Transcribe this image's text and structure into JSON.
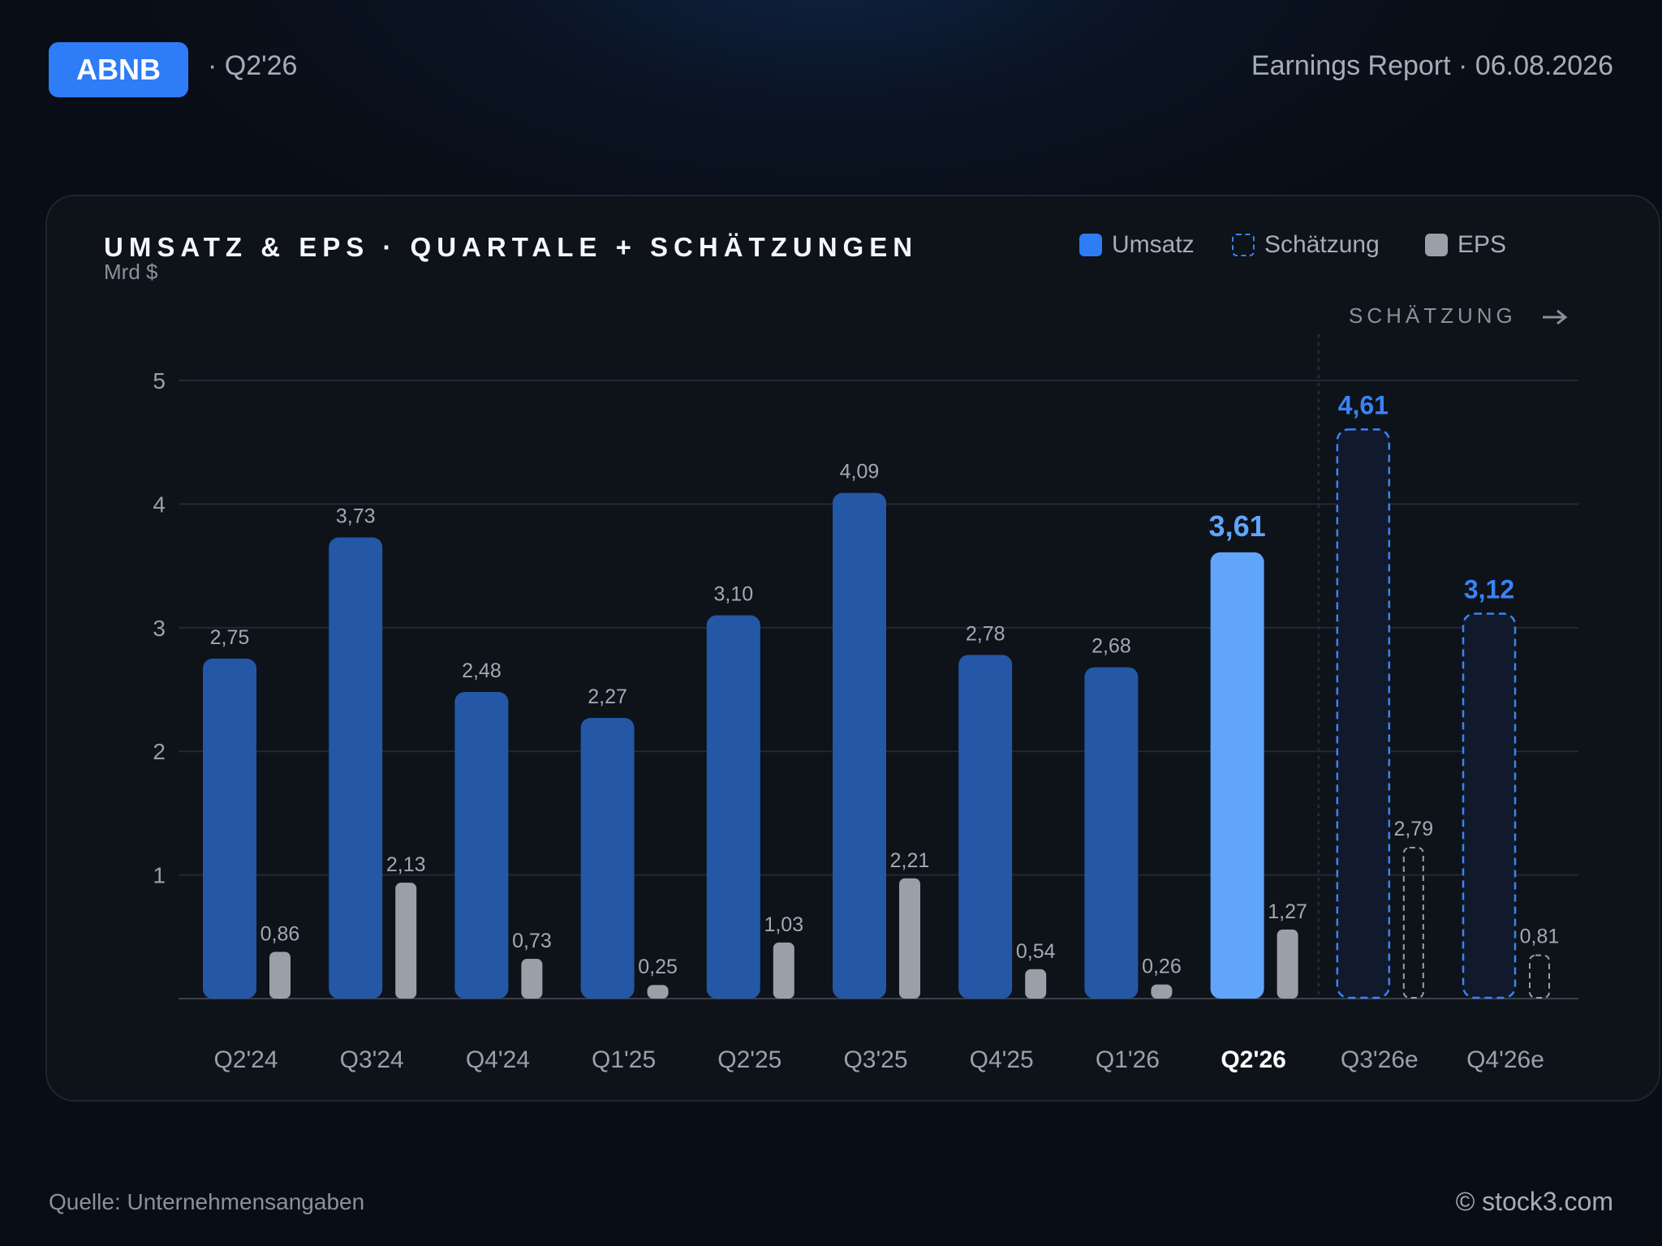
{
  "header": {
    "ticker": "ABNB",
    "period": "· Q2'26",
    "report": "Earnings Report · 06.08.2026"
  },
  "legend": {
    "revenue": "Umsatz",
    "estimate": "Schätzung",
    "eps": "EPS"
  },
  "estimate_marker": "SCHÄTZUNG",
  "footer": {
    "source": "Quelle: Unternehmensangaben",
    "copyright": "© stock3.com"
  },
  "colors": {
    "revenue": "#2457a6",
    "highlight": "#60a5fa",
    "estimate": "#3b82f6",
    "eps": "#9aa0a8",
    "accent": "#2e7cf6"
  },
  "chart_data": {
    "type": "bar",
    "title": "UMSATZ & EPS · QUARTALE + SCHÄTZUNGEN",
    "ylabel": "Mrd $",
    "ylim": [
      0,
      5
    ],
    "yticks": [
      1,
      2,
      3,
      4,
      5
    ],
    "grid": true,
    "legend_position": "top-right",
    "categories": [
      "Q2'24",
      "Q3'24",
      "Q4'24",
      "Q1'25",
      "Q2'25",
      "Q3'25",
      "Q4'25",
      "Q1'26",
      "Q2'26",
      "Q3'26e",
      "Q4'26e"
    ],
    "current_index": 8,
    "estimate_from_index": 9,
    "series": [
      {
        "name": "Umsatz",
        "values": [
          2.75,
          3.73,
          2.48,
          2.27,
          3.1,
          4.09,
          2.78,
          2.68,
          3.61,
          4.61,
          3.12
        ],
        "labels": [
          "2,75",
          "3,73",
          "2,48",
          "2,27",
          "3,10",
          "4,09",
          "2,78",
          "2,68",
          "3,61",
          "4,61",
          "3,12"
        ]
      },
      {
        "name": "EPS",
        "values": [
          0.86,
          2.13,
          0.73,
          0.25,
          1.03,
          2.21,
          0.54,
          0.26,
          1.27,
          2.79,
          0.81
        ],
        "labels": [
          "0,86",
          "2,13",
          "0,73",
          "0,25",
          "1,03",
          "2,21",
          "0,54",
          "0,26",
          "1,27",
          "2,79",
          "0,81"
        ]
      }
    ]
  }
}
